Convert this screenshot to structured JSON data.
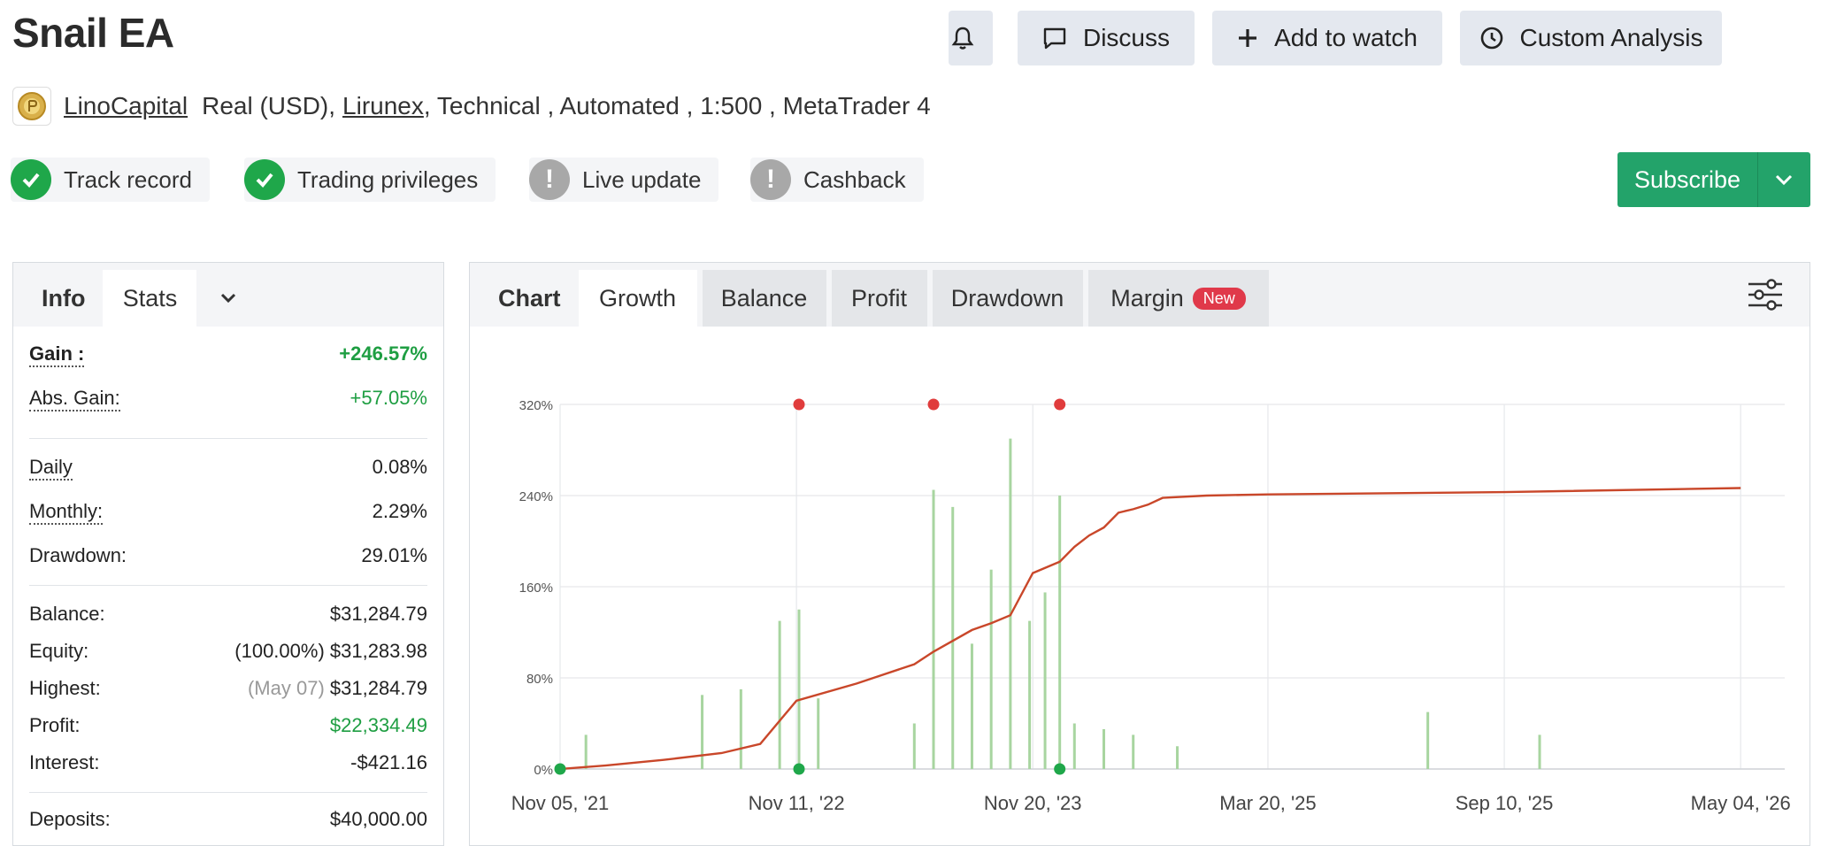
{
  "header": {
    "title": "Snail EA",
    "actions": {
      "discuss_label": "Discuss",
      "watch_label": "Add to watch",
      "analysis_label": "Custom Analysis"
    }
  },
  "meta": {
    "owner": "LinoCapital",
    "account_type": "Real (USD),",
    "broker": "Lirunex",
    "details": ", Technical , Automated , 1:500 , MetaTrader 4"
  },
  "badges": {
    "track_record": "Track record",
    "trading_privileges": "Trading privileges",
    "live_update": "Live update",
    "cashback": "Cashback"
  },
  "subscribe_label": "Subscribe",
  "stats_panel": {
    "tabs": {
      "info": "Info",
      "stats": "Stats"
    },
    "gain": {
      "label": "Gain :",
      "value": "+246.57%"
    },
    "abs_gain": {
      "label": "Abs. Gain:",
      "value": "+57.05%"
    },
    "daily": {
      "label": "Daily",
      "value": "0.08%"
    },
    "monthly": {
      "label": "Monthly:",
      "value": "2.29%"
    },
    "drawdown": {
      "label": "Drawdown:",
      "value": "29.01%"
    },
    "balance": {
      "label": "Balance:",
      "value": "$31,284.79"
    },
    "equity": {
      "label": "Equity:",
      "value": "(100.00%) $31,283.98"
    },
    "highest": {
      "label": "Highest:",
      "note": "(May 07)",
      "value": "$31,284.79"
    },
    "profit": {
      "label": "Profit:",
      "value": "$22,334.49"
    },
    "interest": {
      "label": "Interest:",
      "value": "-$421.16"
    },
    "deposits": {
      "label": "Deposits:",
      "value": "$40,000.00"
    }
  },
  "chart_panel": {
    "tabs": {
      "chart": "Chart",
      "growth": "Growth",
      "balance": "Balance",
      "profit": "Profit",
      "drawdown": "Drawdown",
      "margin": "Margin",
      "new_badge": "New"
    }
  },
  "colors": {
    "growth_line": "#c9472a",
    "bars": "#a8d5a0",
    "marker_red": "#e03c3c",
    "marker_green": "#1fa74a",
    "accent_green": "#23a36a"
  },
  "chart_data": {
    "type": "line",
    "y_tick_labels": [
      "0%",
      "80%",
      "160%",
      "240%",
      "320%"
    ],
    "x_tick_labels": [
      "Nov 05, '21",
      "Nov 11, '22",
      "Nov 20, '23",
      "Mar 20, '25",
      "Sep 10, '25",
      "May 04, '26"
    ],
    "ylim": [
      0,
      320
    ],
    "growth_series": {
      "x_dates": [
        "Nov 05, '21",
        "Jan '22",
        "Apr '22",
        "Jul '22",
        "Sep '22",
        "Nov 11, '22",
        "Feb '23",
        "May '23",
        "Jun '23",
        "Aug '23",
        "Sep '23",
        "Oct '23",
        "Nov 20, '23",
        "Jan '24",
        "Feb '24",
        "Mar '24",
        "Apr '24",
        "May '24",
        "Jun '24",
        "Jul '24",
        "Aug '24",
        "Nov '24",
        "Mar 20, '25",
        "Sep 10, '25",
        "May 04, '26"
      ],
      "values": [
        0,
        3,
        8,
        14,
        22,
        60,
        75,
        92,
        103,
        122,
        128,
        135,
        172,
        182,
        195,
        205,
        212,
        225,
        228,
        232,
        238,
        240,
        241,
        243,
        246.57
      ]
    },
    "daily_bars_note": "Daily gain bars shown in green along the bottom of the chart",
    "bars": {
      "x_dates": [
        "Dec '21",
        "Jun '22",
        "Aug '22",
        "Oct '22",
        "Nov '22",
        "Dec '22",
        "May '23",
        "Jun '23",
        "Jul '23",
        "Aug '23",
        "Sep '23",
        "Oct '23",
        "Nov '23",
        "Dec '23",
        "Jan '24",
        "Feb '24",
        "Apr '24",
        "Jun '24",
        "Sep '24",
        "Jul '25",
        "Oct '25"
      ],
      "values": [
        30,
        65,
        70,
        130,
        140,
        62,
        40,
        245,
        230,
        110,
        175,
        290,
        130,
        155,
        240,
        40,
        35,
        30,
        20,
        50,
        30
      ]
    },
    "markers": {
      "red_dates": [
        "Nov '22",
        "Jun '23",
        "Jan '24"
      ],
      "green_dates": [
        "Nov 05, '21",
        "Nov '22",
        "Jan '24"
      ]
    }
  }
}
